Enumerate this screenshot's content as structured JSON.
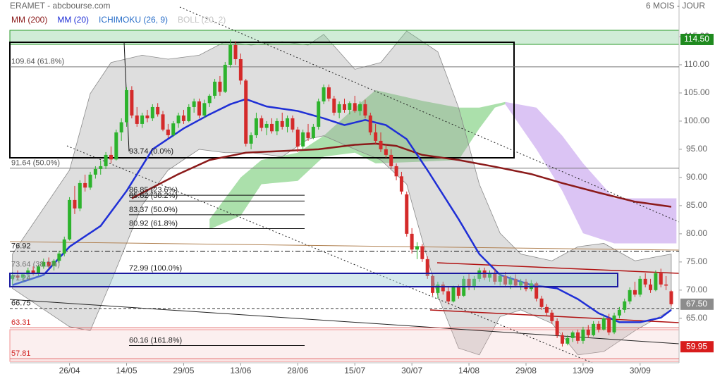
{
  "chart_data": {
    "type": "candlestick",
    "title": "ERAMET - abcbourse.com",
    "subtitle": "6 MOIS - JOUR",
    "up_color": "#2db32d",
    "down_color": "#d42a2a",
    "xlim": [
      -0.5,
      128.5
    ],
    "xticks": [
      {
        "value": 11,
        "label": "26/04"
      },
      {
        "value": 22,
        "label": "14/05"
      },
      {
        "value": 33,
        "label": "29/05"
      },
      {
        "value": 44,
        "label": "13/06"
      },
      {
        "value": 55,
        "label": "28/06"
      },
      {
        "value": 66,
        "label": "15/07"
      },
      {
        "value": 77,
        "label": "30/07"
      },
      {
        "value": 88,
        "label": "14/08"
      },
      {
        "value": 99,
        "label": "29/08"
      },
      {
        "value": 110,
        "label": "13/09"
      },
      {
        "value": 121,
        "label": "30/09"
      }
    ],
    "ylim": [
      57.1,
      121.5
    ],
    "yticks": [
      {
        "value": 115,
        "label": "115.00"
      },
      {
        "value": 110,
        "label": "110.00"
      },
      {
        "value": 105,
        "label": "105.00"
      },
      {
        "value": 100,
        "label": "100.00"
      },
      {
        "value": 95,
        "label": "95.00"
      },
      {
        "value": 90,
        "label": "90.00"
      },
      {
        "value": 85,
        "label": "85.00"
      },
      {
        "value": 80,
        "label": "80.00"
      },
      {
        "value": 75,
        "label": "75.00"
      },
      {
        "value": 70,
        "label": "70.00"
      },
      {
        "value": 65,
        "label": "65.00"
      }
    ],
    "ohlc": [
      [
        72.0,
        73.2,
        71.0,
        72.6
      ],
      [
        72.6,
        73.5,
        71.8,
        72.2
      ],
      [
        72.2,
        73.0,
        71.4,
        72.8
      ],
      [
        72.8,
        74.0,
        72.0,
        73.5
      ],
      [
        73.5,
        74.2,
        72.6,
        73.0
      ],
      [
        73.0,
        74.5,
        72.5,
        74.2
      ],
      [
        74.2,
        75.6,
        73.8,
        75.0
      ],
      [
        75.0,
        75.8,
        73.9,
        74.3
      ],
      [
        74.3,
        75.5,
        73.5,
        75.2
      ],
      [
        75.2,
        77.0,
        74.8,
        76.5
      ],
      [
        76.5,
        79.5,
        76.0,
        79.0
      ],
      [
        79.0,
        86.5,
        78.8,
        86.0
      ],
      [
        86.0,
        88.5,
        83.5,
        84.5
      ],
      [
        84.5,
        89.5,
        84.0,
        89.0
      ],
      [
        89.0,
        90.5,
        87.5,
        88.2
      ],
      [
        88.2,
        91.0,
        87.8,
        90.5
      ],
      [
        90.5,
        92.0,
        89.8,
        91.5
      ],
      [
        91.5,
        93.0,
        90.5,
        92.0
      ],
      [
        92.0,
        94.5,
        91.5,
        94.0
      ],
      [
        94.0,
        95.5,
        92.5,
        93.2
      ],
      [
        93.2,
        98.5,
        93.0,
        98.0
      ],
      [
        98.0,
        100.5,
        96.5,
        99.8
      ],
      [
        99.8,
        106.0,
        99.0,
        105.5
      ],
      [
        105.5,
        106.2,
        100.5,
        101.0
      ],
      [
        101.0,
        102.5,
        99.0,
        99.5
      ],
      [
        99.5,
        101.5,
        98.8,
        101.0
      ],
      [
        101.0,
        102.0,
        99.8,
        100.5
      ],
      [
        100.5,
        103.0,
        100.0,
        102.5
      ],
      [
        102.5,
        103.2,
        100.8,
        101.2
      ],
      [
        101.2,
        101.8,
        98.2,
        98.5
      ],
      [
        98.5,
        99.5,
        97.0,
        97.5
      ],
      [
        97.5,
        100.0,
        97.2,
        99.6
      ],
      [
        99.6,
        101.5,
        98.8,
        101.0
      ],
      [
        101.0,
        102.0,
        99.5,
        100.0
      ],
      [
        100.0,
        103.0,
        99.8,
        102.5
      ],
      [
        102.5,
        104.0,
        101.5,
        103.5
      ],
      [
        103.5,
        104.0,
        100.5,
        101.0
      ],
      [
        101.0,
        103.8,
        100.5,
        103.2
      ],
      [
        103.2,
        104.8,
        102.5,
        104.5
      ],
      [
        104.5,
        107.5,
        104.0,
        107.0
      ],
      [
        107.0,
        108.0,
        104.5,
        105.2
      ],
      [
        105.2,
        110.5,
        105.0,
        110.0
      ],
      [
        110.0,
        114.5,
        109.5,
        113.5
      ],
      [
        113.5,
        114.2,
        110.0,
        111.0
      ],
      [
        111.0,
        112.0,
        106.5,
        107.2
      ],
      [
        107.2,
        107.5,
        95.5,
        96.0
      ],
      [
        96.0,
        98.0,
        95.0,
        97.5
      ],
      [
        97.5,
        101.5,
        97.0,
        100.5
      ],
      [
        100.5,
        101.0,
        98.2,
        98.8
      ],
      [
        98.8,
        100.0,
        97.5,
        99.5
      ],
      [
        99.5,
        100.5,
        97.8,
        98.2
      ],
      [
        98.2,
        100.5,
        97.5,
        100.0
      ],
      [
        100.0,
        101.5,
        98.5,
        99.0
      ],
      [
        99.0,
        101.0,
        98.0,
        100.5
      ],
      [
        100.5,
        101.0,
        98.0,
        98.5
      ],
      [
        98.5,
        99.0,
        94.5,
        95.5
      ],
      [
        95.5,
        98.5,
        95.0,
        98.0
      ],
      [
        98.0,
        99.5,
        96.5,
        97.0
      ],
      [
        97.0,
        99.5,
        96.8,
        99.0
      ],
      [
        99.0,
        104.0,
        98.5,
        103.5
      ],
      [
        103.5,
        106.5,
        103.0,
        106.0
      ],
      [
        106.0,
        106.5,
        103.5,
        104.0
      ],
      [
        104.0,
        104.5,
        101.0,
        101.5
      ],
      [
        101.5,
        103.5,
        100.5,
        103.0
      ],
      [
        103.0,
        104.0,
        101.5,
        102.0
      ],
      [
        102.0,
        103.5,
        101.2,
        103.2
      ],
      [
        103.2,
        104.5,
        101.5,
        101.8
      ],
      [
        101.8,
        103.5,
        101.0,
        103.0
      ],
      [
        103.0,
        103.8,
        100.5,
        101.0
      ],
      [
        101.0,
        101.5,
        97.5,
        98.0
      ],
      [
        98.0,
        99.5,
        96.0,
        96.5
      ],
      [
        96.5,
        98.0,
        94.5,
        95.0
      ],
      [
        95.0,
        96.0,
        93.5,
        94.0
      ],
      [
        94.0,
        95.0,
        91.5,
        92.0
      ],
      [
        92.0,
        92.5,
        89.5,
        90.2
      ],
      [
        90.2,
        91.0,
        87.0,
        87.5
      ],
      [
        87.0,
        87.5,
        79.5,
        80.0
      ],
      [
        80.0,
        81.0,
        76.5,
        77.2
      ],
      [
        77.2,
        78.5,
        75.5,
        77.8
      ],
      [
        77.8,
        78.2,
        75.0,
        75.5
      ],
      [
        75.5,
        76.0,
        72.0,
        72.5
      ],
      [
        72.5,
        72.8,
        69.0,
        69.5
      ],
      [
        69.5,
        71.5,
        68.5,
        71.0
      ],
      [
        71.0,
        71.5,
        69.2,
        69.8
      ],
      [
        69.8,
        70.5,
        67.5,
        68.0
      ],
      [
        68.0,
        70.8,
        67.8,
        70.5
      ],
      [
        70.5,
        71.0,
        68.5,
        69.0
      ],
      [
        69.0,
        72.5,
        68.8,
        72.0
      ],
      [
        72.0,
        73.0,
        70.0,
        70.5
      ],
      [
        70.5,
        72.5,
        70.0,
        72.0
      ],
      [
        72.0,
        74.0,
        71.5,
        73.5
      ],
      [
        73.5,
        74.0,
        71.8,
        72.2
      ],
      [
        72.2,
        73.5,
        71.5,
        73.0
      ],
      [
        73.0,
        73.8,
        71.0,
        71.5
      ],
      [
        71.5,
        73.0,
        70.8,
        72.5
      ],
      [
        72.5,
        73.2,
        70.5,
        71.0
      ],
      [
        71.0,
        72.5,
        70.2,
        72.0
      ],
      [
        72.0,
        72.8,
        70.5,
        70.8
      ],
      [
        70.8,
        72.0,
        70.0,
        71.5
      ],
      [
        71.5,
        72.0,
        69.8,
        70.2
      ],
      [
        70.2,
        71.8,
        69.8,
        71.2
      ],
      [
        71.2,
        71.5,
        68.0,
        68.5
      ],
      [
        68.5,
        69.0,
        66.5,
        67.0
      ],
      [
        67.0,
        67.5,
        65.5,
        66.0
      ],
      [
        66.0,
        66.5,
        64.0,
        64.5
      ],
      [
        64.5,
        65.0,
        61.5,
        62.0
      ],
      [
        62.0,
        62.5,
        60.0,
        60.5
      ],
      [
        60.5,
        62.0,
        60.2,
        61.5
      ],
      [
        61.5,
        62.8,
        60.8,
        62.5
      ],
      [
        62.5,
        63.0,
        60.5,
        61.0
      ],
      [
        61.0,
        63.5,
        60.5,
        63.0
      ],
      [
        63.0,
        63.8,
        61.5,
        62.0
      ],
      [
        62.0,
        64.5,
        61.8,
        64.0
      ],
      [
        64.0,
        64.5,
        62.5,
        63.0
      ],
      [
        63.0,
        65.5,
        62.8,
        65.0
      ],
      [
        65.0,
        65.8,
        62.0,
        62.5
      ],
      [
        62.5,
        66.0,
        62.2,
        65.5
      ],
      [
        65.5,
        67.0,
        65.0,
        66.5
      ],
      [
        66.5,
        68.5,
        66.0,
        68.0
      ],
      [
        68.0,
        70.5,
        67.5,
        70.0
      ],
      [
        70.0,
        71.5,
        68.8,
        69.2
      ],
      [
        69.2,
        72.5,
        68.8,
        72.0
      ],
      [
        72.0,
        73.0,
        70.5,
        71.0
      ],
      [
        71.0,
        72.0,
        69.5,
        70.0
      ],
      [
        70.0,
        73.5,
        69.8,
        73.0
      ],
      [
        73.0,
        73.8,
        70.5,
        71.0
      ],
      [
        71.0,
        72.5,
        70.0,
        70.8
      ],
      [
        69.8,
        70.0,
        67.2,
        67.5
      ]
    ],
    "series": [
      {
        "name": "MM (200)",
        "color": "#8b1a1a",
        "x": [
          23,
          32,
          38,
          45,
          52,
          59,
          66,
          70,
          74,
          79,
          86,
          93,
          100,
          106,
          113,
          120,
          127
        ],
        "values": [
          86.3,
          90.6,
          93.1,
          94.4,
          94.7,
          95.0,
          95.8,
          96.0,
          95.6,
          94.0,
          93.1,
          91.9,
          90.6,
          89.0,
          87.3,
          85.7,
          84.8
        ]
      },
      {
        "name": "MM (20)",
        "color": "#1f2fd6",
        "x": [
          0,
          6,
          11,
          17,
          22,
          27,
          33,
          38,
          42,
          45,
          49,
          55,
          60,
          64,
          68,
          72,
          76,
          80,
          86,
          90,
          94,
          100,
          105,
          109,
          113,
          117,
          121,
          125,
          127
        ],
        "values": [
          70.9,
          72.7,
          77.7,
          81.4,
          87.6,
          95.0,
          98.7,
          101.2,
          103.0,
          103.9,
          102.6,
          101.8,
          100.5,
          99.3,
          100.2,
          99.3,
          96.8,
          91.3,
          82.6,
          76.4,
          72.7,
          70.9,
          70.3,
          68.4,
          65.9,
          64.3,
          64.3,
          65.1,
          66.5
        ]
      },
      {
        "name": "ICHIMOKU (26, 9)",
        "color": "#2a6fc9",
        "clouds": [
          {
            "color": "#8fd68f",
            "x": [
              38,
              44,
              48,
              55,
              60,
              66,
              70,
              79,
              86,
              90,
              93,
              95
            ],
            "upper": [
              82.6,
              90.0,
              93.1,
              94.4,
              97.4,
              102.4,
              105.5,
              103.6,
              102.4,
              102.4,
              103.0,
              103.4
            ],
            "lower": [
              80.8,
              83.2,
              88.8,
              89.4,
              93.7,
              94.4,
              92.5,
              92.8,
              93.1,
              98.7,
              102.4,
              103.0
            ]
          },
          {
            "color": "#cfb0f0",
            "x": [
              95,
              101,
              106,
              110,
              116,
              123,
              128
            ],
            "upper": [
              103.4,
              102.4,
              97.4,
              92.5,
              86.3,
              86.3,
              86.3
            ],
            "lower": [
              103.0,
              95.0,
              87.6,
              80.1,
              78.3,
              78.3,
              78.3
            ]
          }
        ]
      },
      {
        "name": "BOLL (20, 2)",
        "color": "#c4c4c4",
        "x": [
          0,
          11,
          15,
          19,
          25,
          30,
          36,
          41,
          46,
          52,
          57,
          60,
          66,
          71,
          76,
          82,
          86,
          90,
          94,
          98,
          104,
          109,
          114,
          120,
          127
        ],
        "upper": [
          76.4,
          91.3,
          104.9,
          110.4,
          111.7,
          111.0,
          111.7,
          114.1,
          113.5,
          114.1,
          113.5,
          115.4,
          109.2,
          110.4,
          116.0,
          112.3,
          102.4,
          88.8,
          80.1,
          76.4,
          75.2,
          77.7,
          78.3,
          75.2,
          76.4
        ],
        "lower": [
          70.3,
          63.5,
          62.8,
          71.5,
          85.1,
          91.3,
          95.0,
          94.4,
          94.4,
          93.7,
          96.8,
          97.4,
          95.0,
          93.1,
          88.8,
          69.0,
          59.7,
          58.5,
          65.3,
          66.5,
          64.1,
          58.5,
          59.1,
          62.8,
          66.5
        ]
      }
    ],
    "levels": [
      {
        "value": 109.64,
        "label": "109.64 (61.8%)",
        "style": "full"
      },
      {
        "value": 93.74,
        "label": "93.74 (0.0%)",
        "style": "fiblabel"
      },
      {
        "value": 91.64,
        "label": "91.64 (50.0%)",
        "style": "full"
      },
      {
        "value": 86.85,
        "label": "86.85 (23.6%)",
        "style": "short"
      },
      {
        "value": 85.82,
        "label": "85.82 (38.2%)",
        "style": "short"
      },
      {
        "value": 83.37,
        "label": "83.37 (50.0%)",
        "style": "short"
      },
      {
        "value": 80.92,
        "label": "80.92 (61.8%)",
        "style": "short"
      },
      {
        "value": 76.92,
        "label": "76.92",
        "style": "dashdot"
      },
      {
        "value": 73.64,
        "label": "73.64 (38.2%)",
        "style": "label"
      },
      {
        "value": 72.99,
        "label": "72.99 (100.0%)",
        "style": "short"
      },
      {
        "value": 71.24,
        "label": "71.24",
        "style": "label"
      },
      {
        "value": 66.75,
        "label": "66.75",
        "style": "dashed"
      },
      {
        "value": 63.31,
        "label": "63.31",
        "style": "red"
      },
      {
        "value": 60.16,
        "label": "60.16 (161.8%)",
        "style": "short"
      },
      {
        "value": 57.81,
        "label": "57.81",
        "style": "red"
      }
    ],
    "price_tags": [
      {
        "value": 114.5,
        "label": "114.50",
        "color": "#1f8a1f"
      },
      {
        "value": 67.5,
        "label": "67.50",
        "color": "#8c8c8c"
      },
      {
        "value": 59.95,
        "label": "59.95",
        "color": "#d81c1c"
      }
    ]
  }
}
